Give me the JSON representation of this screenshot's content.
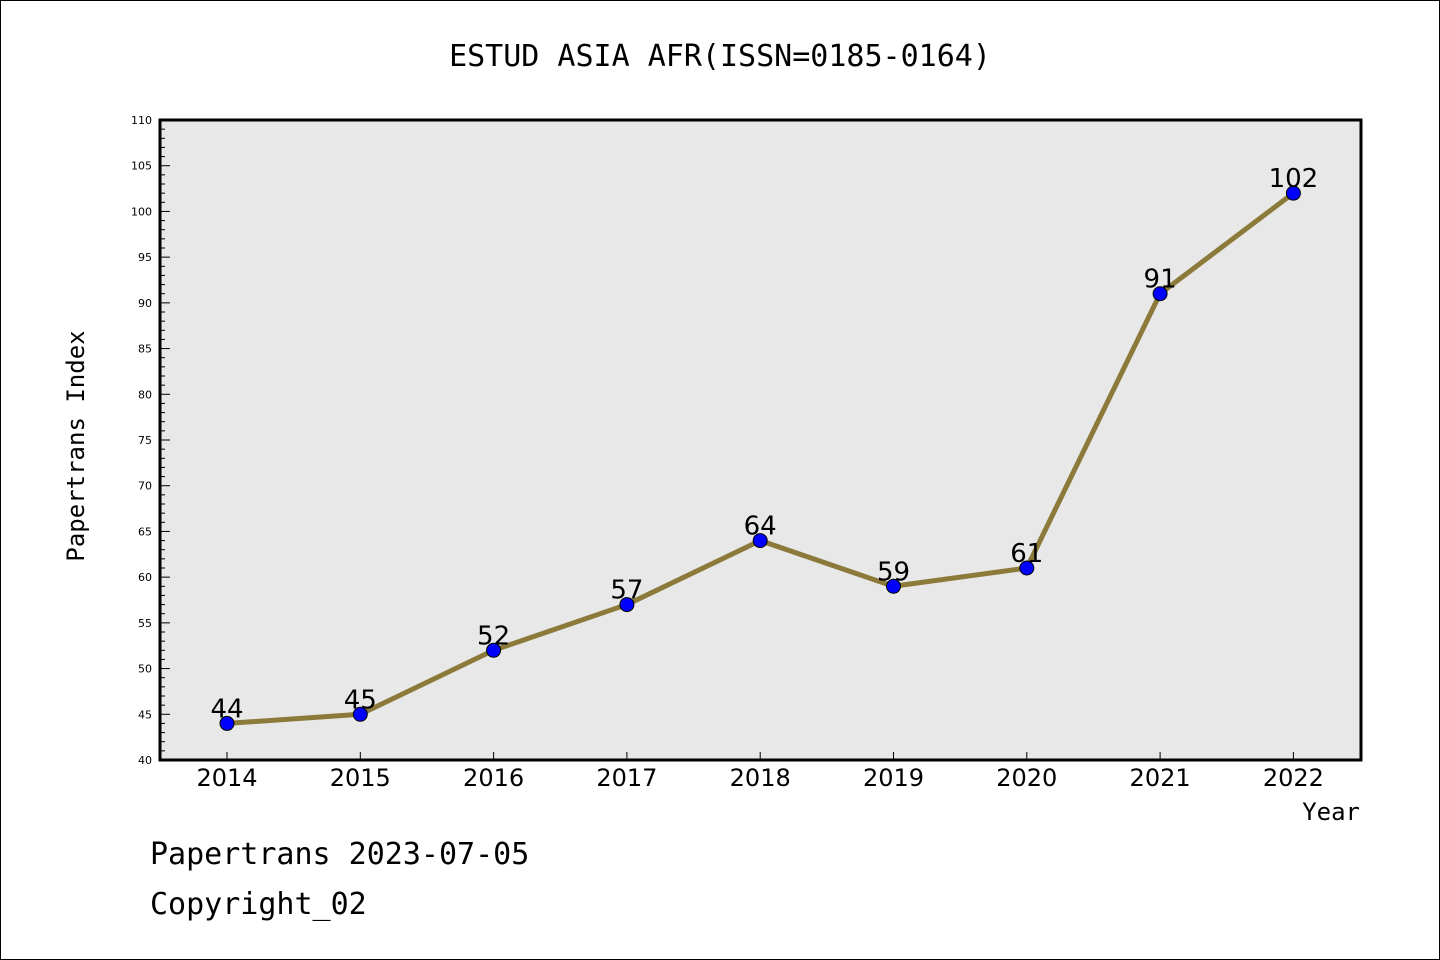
{
  "chart_data": {
    "type": "line",
    "title": "ESTUD ASIA AFR(ISSN=0185-0164)",
    "xlabel": "Year",
    "ylabel": "Papertrans Index",
    "categories": [
      "2014",
      "2015",
      "2016",
      "2017",
      "2018",
      "2019",
      "2020",
      "2021",
      "2022"
    ],
    "values": [
      44,
      45,
      52,
      57,
      64,
      59,
      61,
      91,
      102
    ],
    "data_labels": [
      "44",
      "45",
      "52",
      "57",
      "64",
      "59",
      "61",
      "91",
      "102"
    ],
    "ylim": [
      40,
      110
    ],
    "yticks": [
      "40",
      "45",
      "50",
      "55",
      "60",
      "65",
      "70",
      "75",
      "80",
      "85",
      "90",
      "95",
      "100",
      "105",
      "110"
    ],
    "grid": false,
    "colors": {
      "line": "#8b7a3a",
      "marker": "#0000ff",
      "plot_background": "#e8e8e8"
    }
  },
  "footer": {
    "line1": "Papertrans 2023-07-05",
    "line2": "Copyright_02"
  }
}
